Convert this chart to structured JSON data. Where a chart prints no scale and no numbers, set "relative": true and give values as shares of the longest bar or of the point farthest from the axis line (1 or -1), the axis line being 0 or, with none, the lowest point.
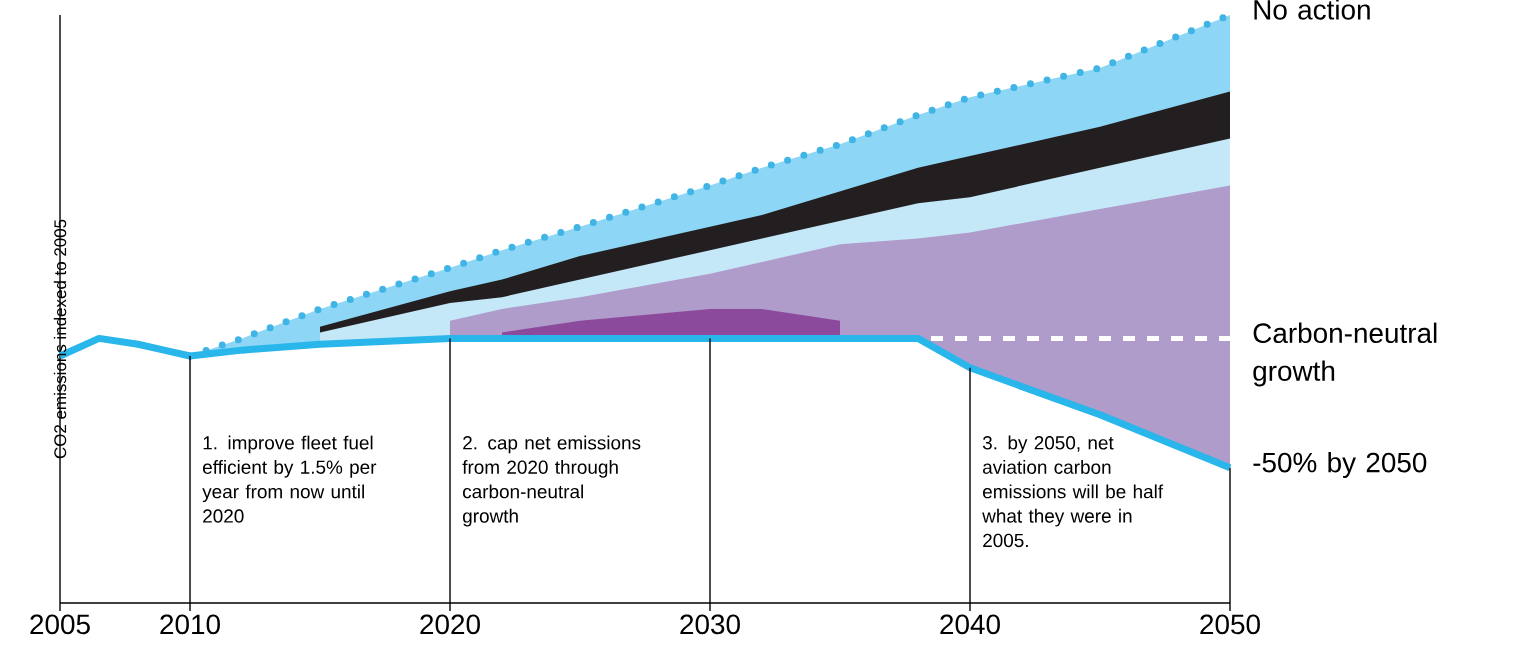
{
  "chart_data": {
    "type": "area",
    "relative": true,
    "ylabel": "CO2 emissions indexed to 2005",
    "x": [
      2005,
      2006.5,
      2008,
      2009,
      2010,
      2012,
      2015,
      2020,
      2022,
      2025,
      2030,
      2032,
      2035,
      2038,
      2040,
      2045,
      2050
    ],
    "xlim": [
      2005,
      2050
    ],
    "xticks": [
      2005,
      2010,
      2020,
      2030,
      2040,
      2050
    ],
    "series": [
      {
        "name": "No action",
        "color": "#8dd6f5",
        "line_style": "dotted",
        "values": [
          null,
          null,
          null,
          null,
          0.42,
          0.45,
          0.5,
          0.57,
          0.6,
          0.64,
          0.71,
          0.74,
          0.78,
          0.83,
          0.86,
          0.91,
          1.0
        ]
      },
      {
        "color": "#231f20",
        "values": [
          null,
          null,
          null,
          null,
          null,
          null,
          0.47,
          0.53,
          0.55,
          0.59,
          0.64,
          0.66,
          0.7,
          0.74,
          0.76,
          0.81,
          0.87
        ]
      },
      {
        "color": "#c5e8f9",
        "values": [
          null,
          null,
          null,
          null,
          null,
          null,
          0.46,
          0.51,
          0.52,
          0.55,
          0.6,
          0.62,
          0.65,
          0.68,
          0.69,
          0.74,
          0.79
        ]
      },
      {
        "color": "#b09ccb",
        "values": [
          null,
          null,
          null,
          null,
          null,
          null,
          null,
          0.48,
          0.5,
          0.52,
          0.56,
          0.58,
          0.61,
          0.62,
          0.63,
          0.67,
          0.71
        ]
      },
      {
        "color": "#8b4a9c",
        "values": [
          null,
          null,
          null,
          null,
          null,
          null,
          null,
          null,
          0.46,
          0.48,
          0.5,
          0.5,
          0.48,
          null,
          null,
          null,
          null
        ]
      },
      {
        "name": "-50% by 2050",
        "type": "line",
        "color": "#29b6ea",
        "line_style": "solid",
        "values": [
          0.42,
          0.45,
          0.44,
          0.43,
          0.42,
          0.43,
          0.44,
          0.45,
          0.45,
          0.45,
          0.45,
          0.45,
          0.45,
          0.45,
          0.4,
          0.32,
          0.23
        ]
      },
      {
        "name": "Carbon-neutral growth",
        "type": "line",
        "color": "#ffffff",
        "line_style": "dashed",
        "x": [
          2038.5,
          2050
        ],
        "values": [
          0.45,
          0.45
        ]
      }
    ],
    "annotations": [
      "1. improve fleet fuel efficient by 1.5% per year from now until 2020",
      "2. cap net emissions from 2020 through carbon-neutral growth",
      "3. by 2050, net aviation carbon emissions will be half what they were in 2005."
    ]
  }
}
